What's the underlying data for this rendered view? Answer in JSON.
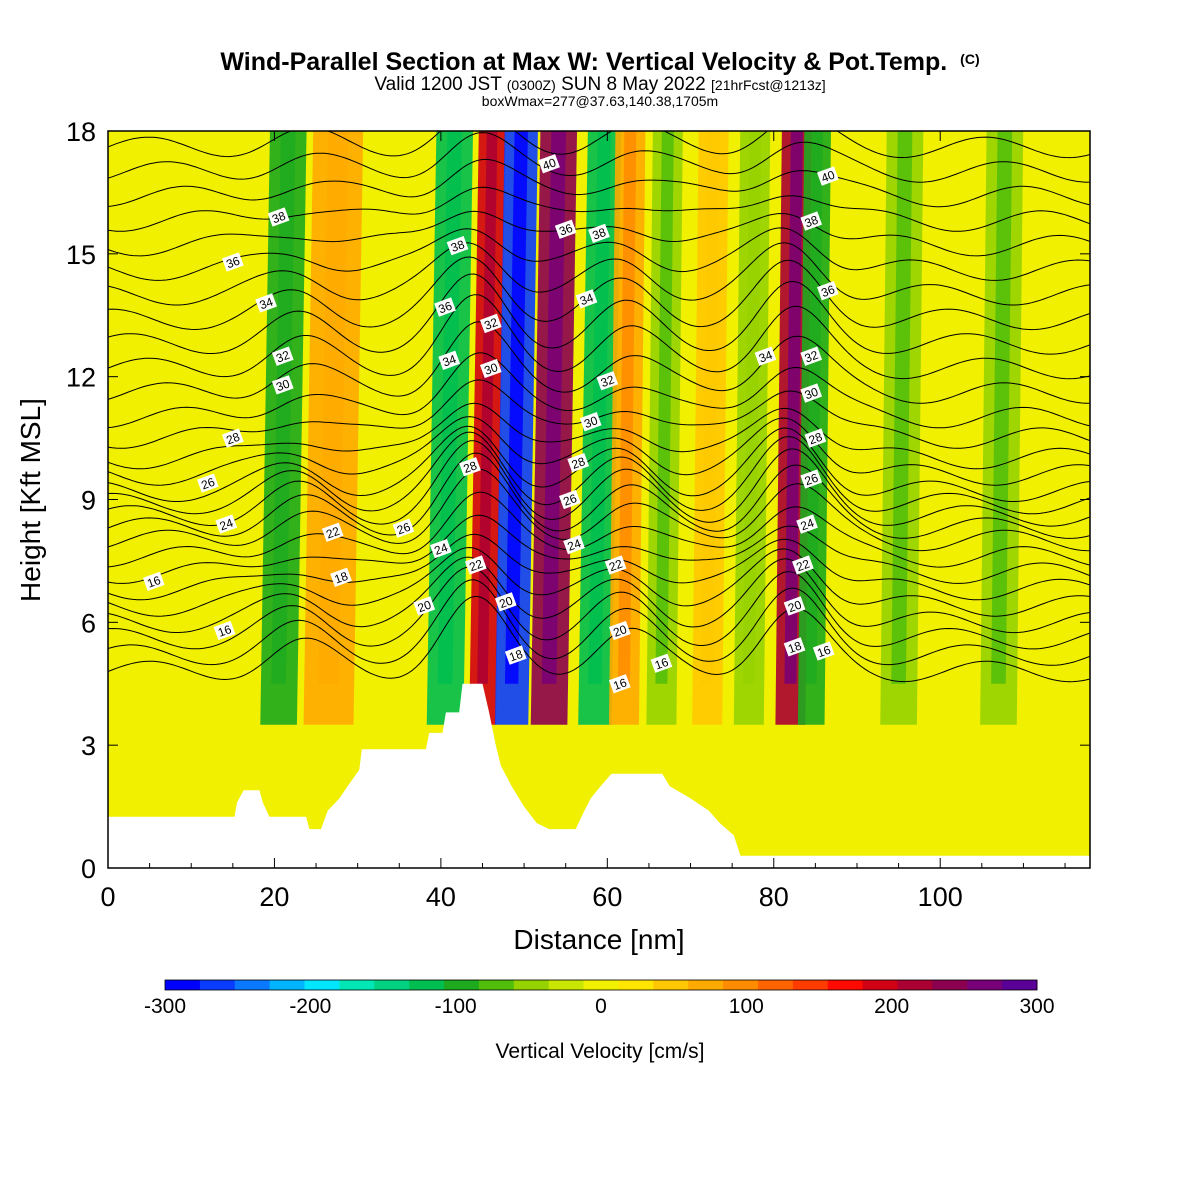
{
  "chart_data": {
    "type": "heatmap",
    "title": "Wind-Parallel Section at Max W: Vertical Velocity & Pot.Temp.",
    "title_mark": "(C)",
    "subtitle": {
      "a": "Valid 1200 JST",
      "b": "(0300Z)",
      "c": "SUN 8 May 2022",
      "d": "[21hrFcst@1213z]"
    },
    "subtitle2": "boxWmax=277@37.63,140.38,1705m",
    "xlabel": "Distance [nm]",
    "ylabel": "Height [Kft MSL]",
    "xlim": [
      0,
      118
    ],
    "ylim": [
      0,
      18
    ],
    "xticks": [
      "0",
      "20",
      "40",
      "60",
      "80",
      "100"
    ],
    "xtick_values": [
      0,
      20,
      40,
      60,
      80,
      100
    ],
    "yticks": [
      "0",
      "3",
      "6",
      "9",
      "12",
      "15",
      "18"
    ],
    "ytick_values": [
      0,
      3,
      6,
      9,
      12,
      15,
      18
    ],
    "colorbar": {
      "label": "Vertical Velocity [cm/s]",
      "range": [
        -300,
        300
      ],
      "ticks": [
        "-300",
        "-200",
        "-100",
        "0",
        "100",
        "200",
        "300"
      ],
      "tick_values": [
        -300,
        -200,
        -100,
        0,
        100,
        200,
        300
      ],
      "colors": [
        "#0000ff",
        "#0a3cff",
        "#0a78ff",
        "#00b4ff",
        "#00e6ff",
        "#00e6b4",
        "#00d282",
        "#00be50",
        "#1eaa1e",
        "#50be0a",
        "#96d200",
        "#c8e600",
        "#f0f000",
        "#ffe600",
        "#ffc800",
        "#ffaa00",
        "#ff8c00",
        "#ff6400",
        "#ff3c00",
        "#ff0a00",
        "#d20014",
        "#aa0032",
        "#8c0050",
        "#780078",
        "#5a0096"
      ]
    },
    "velocity_bands": [
      {
        "x": 20.5,
        "w": 2.2,
        "v": -90
      },
      {
        "x": 26.5,
        "w": 3.0,
        "v": 60
      },
      {
        "x": 40.5,
        "w": 2.2,
        "v": -110
      },
      {
        "x": 45.0,
        "w": 1.6,
        "v": 190
      },
      {
        "x": 48.5,
        "w": 2.0,
        "v": -260
      },
      {
        "x": 53.0,
        "w": 2.2,
        "v": 230
      },
      {
        "x": 58.5,
        "w": 2.0,
        "v": -110
      },
      {
        "x": 62.0,
        "w": 1.8,
        "v": 80
      },
      {
        "x": 66.5,
        "w": 1.8,
        "v": -60
      },
      {
        "x": 72.0,
        "w": 1.8,
        "v": 50
      },
      {
        "x": 77.0,
        "w": 1.8,
        "v": -50
      },
      {
        "x": 82.0,
        "w": 1.8,
        "v": 220
      },
      {
        "x": 84.5,
        "w": 1.6,
        "v": -90
      },
      {
        "x": 95.0,
        "w": 2.2,
        "v": -60
      },
      {
        "x": 107.0,
        "w": 2.2,
        "v": -60
      }
    ],
    "terrain": [
      {
        "x": 0,
        "h": 1.25
      },
      {
        "x": 15.2,
        "h": 1.25
      },
      {
        "x": 15.5,
        "h": 1.6
      },
      {
        "x": 16.3,
        "h": 1.9
      },
      {
        "x": 18.2,
        "h": 1.9
      },
      {
        "x": 18.6,
        "h": 1.6
      },
      {
        "x": 19.4,
        "h": 1.25
      },
      {
        "x": 23.8,
        "h": 1.25
      },
      {
        "x": 24.2,
        "h": 0.95
      },
      {
        "x": 25.6,
        "h": 0.95
      },
      {
        "x": 26.4,
        "h": 1.4
      },
      {
        "x": 27.8,
        "h": 1.7
      },
      {
        "x": 28.8,
        "h": 2.0
      },
      {
        "x": 30.2,
        "h": 2.4
      },
      {
        "x": 30.5,
        "h": 2.9
      },
      {
        "x": 38.2,
        "h": 2.9
      },
      {
        "x": 38.6,
        "h": 3.3
      },
      {
        "x": 40.2,
        "h": 3.3
      },
      {
        "x": 40.6,
        "h": 3.8
      },
      {
        "x": 42.2,
        "h": 3.8
      },
      {
        "x": 42.6,
        "h": 4.5
      },
      {
        "x": 45.0,
        "h": 4.5
      },
      {
        "x": 45.8,
        "h": 3.8
      },
      {
        "x": 46.6,
        "h": 3.0
      },
      {
        "x": 47.2,
        "h": 2.5
      },
      {
        "x": 48.5,
        "h": 2.0
      },
      {
        "x": 50.0,
        "h": 1.5
      },
      {
        "x": 51.5,
        "h": 1.1
      },
      {
        "x": 53.0,
        "h": 0.95
      },
      {
        "x": 56.2,
        "h": 0.95
      },
      {
        "x": 57.0,
        "h": 1.3
      },
      {
        "x": 58.0,
        "h": 1.7
      },
      {
        "x": 59.2,
        "h": 2.0
      },
      {
        "x": 60.5,
        "h": 2.3
      },
      {
        "x": 66.6,
        "h": 2.3
      },
      {
        "x": 67.5,
        "h": 2.0
      },
      {
        "x": 70.0,
        "h": 1.7
      },
      {
        "x": 72.2,
        "h": 1.4
      },
      {
        "x": 73.5,
        "h": 1.1
      },
      {
        "x": 75.2,
        "h": 0.8
      },
      {
        "x": 76.0,
        "h": 0.3
      },
      {
        "x": 118.0,
        "h": 0.3
      }
    ],
    "theta_contours": [
      {
        "base": 4.8,
        "label": "16"
      },
      {
        "base": 5.2,
        "label": ""
      },
      {
        "base": 5.6,
        "label": ""
      },
      {
        "base": 6.0,
        "label": ""
      },
      {
        "base": 6.4,
        "label": "18"
      },
      {
        "base": 6.8,
        "label": ""
      },
      {
        "base": 7.2,
        "label": "20"
      },
      {
        "base": 7.6,
        "label": ""
      },
      {
        "base": 8.0,
        "label": "22"
      },
      {
        "base": 8.3,
        "label": ""
      },
      {
        "base": 8.6,
        "label": "24"
      },
      {
        "base": 8.9,
        "label": ""
      },
      {
        "base": 9.2,
        "label": "26"
      },
      {
        "base": 9.6,
        "label": ""
      },
      {
        "base": 10.0,
        "label": "28"
      },
      {
        "base": 10.5,
        "label": ""
      },
      {
        "base": 11.0,
        "label": "30"
      },
      {
        "base": 11.6,
        "label": ""
      },
      {
        "base": 12.2,
        "label": "32"
      },
      {
        "base": 12.8,
        "label": ""
      },
      {
        "base": 13.4,
        "label": "34"
      },
      {
        "base": 14.0,
        "label": ""
      },
      {
        "base": 14.6,
        "label": "36"
      },
      {
        "base": 15.2,
        "label": ""
      },
      {
        "base": 15.8,
        "label": "38"
      },
      {
        "base": 16.4,
        "label": ""
      },
      {
        "base": 17.0,
        "label": "40"
      },
      {
        "base": 17.6,
        "label": ""
      }
    ],
    "contour_labels": [
      {
        "text": "16",
        "x": 5.5,
        "y": 7.0
      },
      {
        "text": "16",
        "x": 14.0,
        "y": 5.8
      },
      {
        "text": "24",
        "x": 14.2,
        "y": 8.4
      },
      {
        "text": "26",
        "x": 12.0,
        "y": 9.4
      },
      {
        "text": "28",
        "x": 15.0,
        "y": 10.5
      },
      {
        "text": "30",
        "x": 21.0,
        "y": 11.8
      },
      {
        "text": "32",
        "x": 21.0,
        "y": 12.5
      },
      {
        "text": "34",
        "x": 19.0,
        "y": 13.8
      },
      {
        "text": "36",
        "x": 15.0,
        "y": 14.8
      },
      {
        "text": "38",
        "x": 20.5,
        "y": 15.9
      },
      {
        "text": "22",
        "x": 27.0,
        "y": 8.2
      },
      {
        "text": "18",
        "x": 28.0,
        "y": 7.1
      },
      {
        "text": "26",
        "x": 35.5,
        "y": 8.3
      },
      {
        "text": "20",
        "x": 38.0,
        "y": 6.4
      },
      {
        "text": "24",
        "x": 40.0,
        "y": 7.8
      },
      {
        "text": "22",
        "x": 44.2,
        "y": 7.4
      },
      {
        "text": "28",
        "x": 43.5,
        "y": 9.8
      },
      {
        "text": "20",
        "x": 47.8,
        "y": 6.5
      },
      {
        "text": "18",
        "x": 49.0,
        "y": 5.2
      },
      {
        "text": "34",
        "x": 41.0,
        "y": 12.4
      },
      {
        "text": "36",
        "x": 40.5,
        "y": 13.7
      },
      {
        "text": "38",
        "x": 42.0,
        "y": 15.2
      },
      {
        "text": "32",
        "x": 46.0,
        "y": 13.3
      },
      {
        "text": "30",
        "x": 46.0,
        "y": 12.2
      },
      {
        "text": "40",
        "x": 53.0,
        "y": 17.2
      },
      {
        "text": "36",
        "x": 55.0,
        "y": 15.6
      },
      {
        "text": "38",
        "x": 59.0,
        "y": 15.5
      },
      {
        "text": "34",
        "x": 57.5,
        "y": 13.9
      },
      {
        "text": "32",
        "x": 60.0,
        "y": 11.9
      },
      {
        "text": "30",
        "x": 58.0,
        "y": 10.9
      },
      {
        "text": "28",
        "x": 56.5,
        "y": 9.9
      },
      {
        "text": "26",
        "x": 55.5,
        "y": 9.0
      },
      {
        "text": "24",
        "x": 56.0,
        "y": 7.9
      },
      {
        "text": "22",
        "x": 61.0,
        "y": 7.4
      },
      {
        "text": "20",
        "x": 61.5,
        "y": 5.8
      },
      {
        "text": "16",
        "x": 61.5,
        "y": 4.5
      },
      {
        "text": "16",
        "x": 66.5,
        "y": 5.0
      },
      {
        "text": "34",
        "x": 79.0,
        "y": 12.5
      },
      {
        "text": "32",
        "x": 84.5,
        "y": 12.5
      },
      {
        "text": "30",
        "x": 84.5,
        "y": 11.6
      },
      {
        "text": "28",
        "x": 85.0,
        "y": 10.5
      },
      {
        "text": "26",
        "x": 84.5,
        "y": 9.5
      },
      {
        "text": "24",
        "x": 84.0,
        "y": 8.4
      },
      {
        "text": "22",
        "x": 83.5,
        "y": 7.4
      },
      {
        "text": "20",
        "x": 82.5,
        "y": 6.4
      },
      {
        "text": "18",
        "x": 82.5,
        "y": 5.4
      },
      {
        "text": "16",
        "x": 86.0,
        "y": 5.3
      },
      {
        "text": "36",
        "x": 86.5,
        "y": 14.1
      },
      {
        "text": "38",
        "x": 84.5,
        "y": 15.8
      },
      {
        "text": "40",
        "x": 86.5,
        "y": 16.9
      }
    ]
  }
}
